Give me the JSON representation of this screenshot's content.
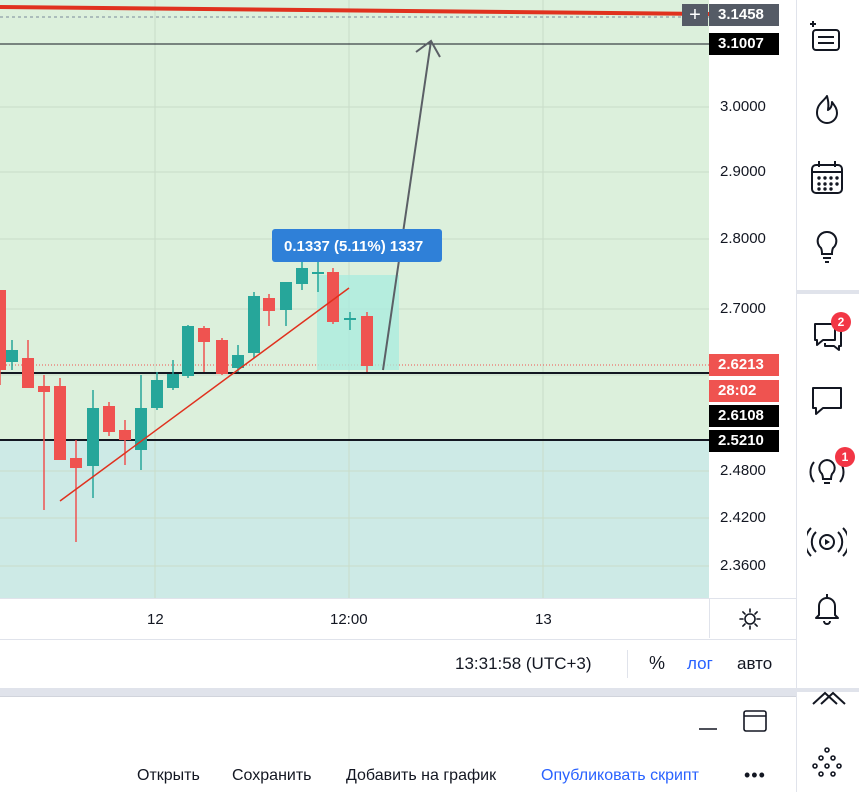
{
  "chart": {
    "price_ticks": [
      "3.0000",
      "2.9000",
      "2.8000",
      "2.7000",
      "2.4800",
      "2.4200",
      "2.3600"
    ],
    "time_ticks": [
      "12",
      "12:00",
      "13"
    ],
    "price_labels": {
      "red_line": "3.1458",
      "target": "3.1007",
      "current": "2.6213",
      "countdown": "28:02",
      "level_1": "2.6108",
      "level_2": "2.5210"
    },
    "measure_label": "0.1337 (5.11%) 1337",
    "plus_symbol": "+",
    "colors": {
      "up": "#26a69a",
      "down": "#ef5350",
      "red_line": "#e0311e",
      "measure_badge": "#2f80d8",
      "green_zone": "#dcf0dc",
      "teal_zone": "#cdeae6"
    }
  },
  "status_bar": {
    "clock": "13:31:58 (UTC+3)",
    "percent": "%",
    "log": "лог",
    "auto": "авто"
  },
  "panel": {
    "open": "Открыть",
    "save": "Сохранить",
    "add_to_chart": "Добавить на график",
    "publish": "Опубликовать скрипт",
    "more": "•••"
  },
  "toolbar": {
    "chat_badge": "2",
    "ideas_badge": "1"
  }
}
